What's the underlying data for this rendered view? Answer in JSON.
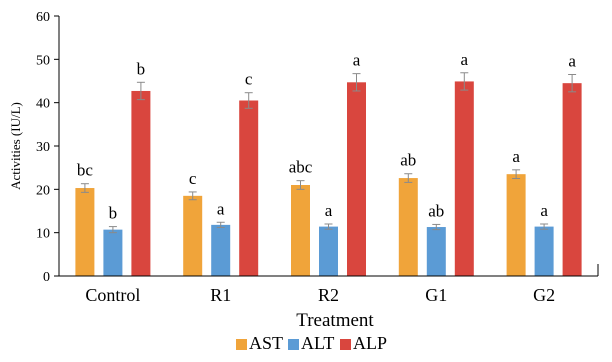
{
  "chart_data": {
    "type": "bar",
    "title": "",
    "xlabel": "Treatment",
    "ylabel": "Activities (IU/L)",
    "ylim": [
      0,
      60
    ],
    "yticks": [
      0,
      10,
      20,
      30,
      40,
      50,
      60
    ],
    "categories": [
      "Control",
      "R1",
      "R2",
      "G1",
      "G2"
    ],
    "grid": false,
    "legend_position": "bottom",
    "series": [
      {
        "name": "AST",
        "color": "#F0A43A",
        "values": [
          20.3,
          18.5,
          21.0,
          22.6,
          23.5
        ],
        "errors": [
          1.0,
          0.9,
          1.0,
          1.0,
          1.0
        ],
        "letters": [
          "bc",
          "c",
          "abc",
          "ab",
          "a"
        ]
      },
      {
        "name": "ALT",
        "color": "#5B9BD5",
        "values": [
          10.7,
          11.8,
          11.4,
          11.3,
          11.4
        ],
        "errors": [
          0.7,
          0.6,
          0.6,
          0.6,
          0.6
        ],
        "letters": [
          "b",
          "a",
          "a",
          "ab",
          "a"
        ]
      },
      {
        "name": "ALP",
        "color": "#D9463E",
        "values": [
          42.7,
          40.5,
          44.7,
          44.9,
          44.5
        ],
        "errors": [
          2.0,
          1.8,
          2.0,
          2.0,
          2.0
        ],
        "letters": [
          "b",
          "c",
          "a",
          "a",
          "a"
        ]
      }
    ]
  }
}
